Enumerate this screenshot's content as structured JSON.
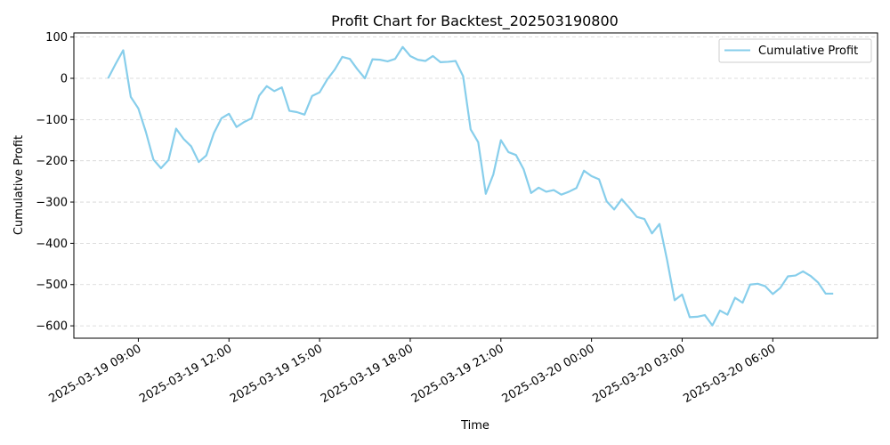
{
  "chart_data": {
    "type": "line",
    "title": "Profit Chart for Backtest_202503190800",
    "xlabel": "Time",
    "ylabel": "Cumulative Profit",
    "ylim": [
      -630,
      110
    ],
    "xlim": [
      "2025-03-19 06:52",
      "2025-03-20 09:28"
    ],
    "grid": {
      "x": false,
      "y": true,
      "style": "dashed"
    },
    "legend": {
      "placement": "top-right"
    },
    "y_ticks": [
      100,
      0,
      -100,
      -200,
      -300,
      -400,
      -500,
      -600
    ],
    "y_tick_labels": [
      "100",
      "0",
      "−100",
      "−200",
      "−300",
      "−400",
      "−500",
      "−600"
    ],
    "x_ticks": [
      "2025-03-19 09:00",
      "2025-03-19 12:00",
      "2025-03-19 15:00",
      "2025-03-19 18:00",
      "2025-03-19 21:00",
      "2025-03-20 00:00",
      "2025-03-20 03:00",
      "2025-03-20 06:00"
    ],
    "x_tick_labels": [
      "2025-03-19 09:00",
      "2025-03-19 12:00",
      "2025-03-19 15:00",
      "2025-03-19 18:00",
      "2025-03-19 21:00",
      "2025-03-20 00:00",
      "2025-03-20 03:00",
      "2025-03-20 06:00"
    ],
    "series": [
      {
        "name": "Cumulative Profit",
        "color": "#87ceeb",
        "x": [
          "2025-03-19 08:00",
          "2025-03-19 08:15",
          "2025-03-19 08:30",
          "2025-03-19 08:45",
          "2025-03-19 09:00",
          "2025-03-19 09:15",
          "2025-03-19 09:30",
          "2025-03-19 09:45",
          "2025-03-19 10:00",
          "2025-03-19 10:15",
          "2025-03-19 10:30",
          "2025-03-19 10:45",
          "2025-03-19 11:00",
          "2025-03-19 11:15",
          "2025-03-19 11:30",
          "2025-03-19 11:45",
          "2025-03-19 12:00",
          "2025-03-19 12:15",
          "2025-03-19 12:30",
          "2025-03-19 12:45",
          "2025-03-19 13:00",
          "2025-03-19 13:15",
          "2025-03-19 13:30",
          "2025-03-19 13:45",
          "2025-03-19 14:00",
          "2025-03-19 14:15",
          "2025-03-19 14:30",
          "2025-03-19 14:45",
          "2025-03-19 15:00",
          "2025-03-19 15:15",
          "2025-03-19 15:30",
          "2025-03-19 15:45",
          "2025-03-19 16:00",
          "2025-03-19 16:15",
          "2025-03-19 16:30",
          "2025-03-19 16:45",
          "2025-03-19 17:00",
          "2025-03-19 17:15",
          "2025-03-19 17:30",
          "2025-03-19 17:45",
          "2025-03-19 18:00",
          "2025-03-19 18:15",
          "2025-03-19 18:30",
          "2025-03-19 18:45",
          "2025-03-19 19:00",
          "2025-03-19 19:15",
          "2025-03-19 19:30",
          "2025-03-19 19:45",
          "2025-03-19 20:00",
          "2025-03-19 20:15",
          "2025-03-19 20:30",
          "2025-03-19 20:45",
          "2025-03-19 21:00",
          "2025-03-19 21:15",
          "2025-03-19 21:30",
          "2025-03-19 21:45",
          "2025-03-19 22:00",
          "2025-03-19 22:15",
          "2025-03-19 22:30",
          "2025-03-19 22:45",
          "2025-03-19 23:00",
          "2025-03-19 23:15",
          "2025-03-19 23:30",
          "2025-03-19 23:45",
          "2025-03-20 00:00",
          "2025-03-20 00:15",
          "2025-03-20 00:30",
          "2025-03-20 00:45",
          "2025-03-20 01:00",
          "2025-03-20 01:15",
          "2025-03-20 01:30",
          "2025-03-20 01:45",
          "2025-03-20 02:00",
          "2025-03-20 02:15",
          "2025-03-20 02:30",
          "2025-03-20 02:45",
          "2025-03-20 03:00",
          "2025-03-20 03:15",
          "2025-03-20 03:30",
          "2025-03-20 03:45",
          "2025-03-20 04:00",
          "2025-03-20 04:15",
          "2025-03-20 04:30",
          "2025-03-20 04:45",
          "2025-03-20 05:00",
          "2025-03-20 05:15",
          "2025-03-20 05:30",
          "2025-03-20 05:45",
          "2025-03-20 06:00",
          "2025-03-20 06:15",
          "2025-03-20 06:30",
          "2025-03-20 06:45",
          "2025-03-20 07:00",
          "2025-03-20 07:15",
          "2025-03-20 07:30",
          "2025-03-20 07:45",
          "2025-03-20 08:00"
        ],
        "y": [
          0,
          35,
          68,
          -45,
          -73,
          -130,
          -197,
          -218,
          -198,
          -122,
          -147,
          -165,
          -203,
          -187,
          -133,
          -97,
          -86,
          -118,
          -106,
          -97,
          -42,
          -19,
          -31,
          -22,
          -79,
          -82,
          -88,
          -43,
          -34,
          -3,
          21,
          52,
          47,
          22,
          0,
          46,
          45,
          41,
          47,
          76,
          54,
          45,
          42,
          54,
          39,
          40,
          42,
          5,
          -124,
          -155,
          -280,
          -233,
          -150,
          -179,
          -186,
          -220,
          -278,
          -265,
          -275,
          -271,
          -282,
          -275,
          -266,
          -224,
          -237,
          -245,
          -298,
          -318,
          -293,
          -314,
          -336,
          -341,
          -376,
          -353,
          -440,
          -538,
          -524,
          -579,
          -578,
          -574,
          -599,
          -563,
          -573,
          -532,
          -544,
          -500,
          -498,
          -504,
          -523,
          -508,
          -480,
          -478,
          -468,
          -479,
          -495,
          -522,
          -522
        ]
      }
    ]
  }
}
